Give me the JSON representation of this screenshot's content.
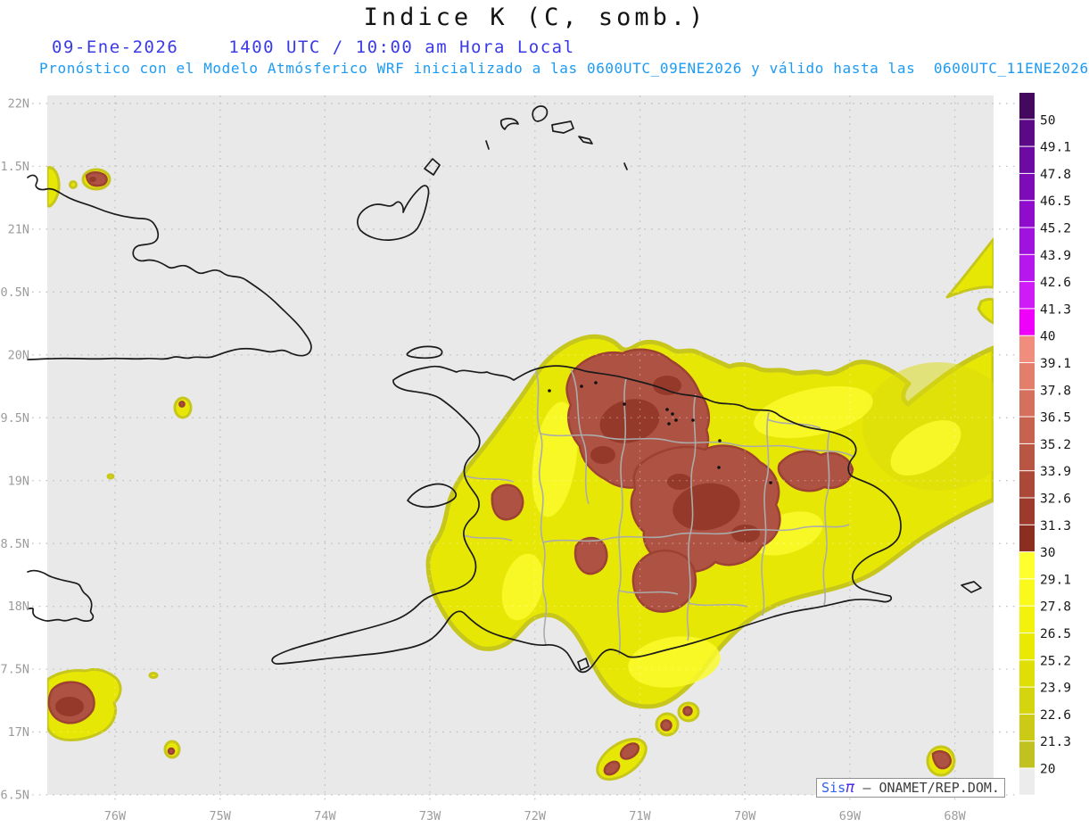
{
  "title": "Indice K (C, somb.)",
  "datetime_line": {
    "date": "09-Ene-2026",
    "time": "1400 UTC / 10:00 am Hora Local"
  },
  "subtitle": "Pronóstico con el Modelo Atmósferico WRF inicializado a las 0600UTC_09ENE2026 y válido hasta las  0600UTC_11ENE2026",
  "map": {
    "lat_labels": [
      "22N",
      "1.5N",
      "21N",
      "0.5N",
      "20N",
      "9.5N",
      "19N",
      "8.5N",
      "18N",
      "7.5N",
      "17N",
      "6.5N"
    ],
    "lon_labels": [
      "76W",
      "75W",
      "74W",
      "73W",
      "72W",
      "71W",
      "70W",
      "69W",
      "68W"
    ]
  },
  "colorbar": {
    "labels": [
      "50",
      "49.1",
      "47.8",
      "46.5",
      "45.2",
      "43.9",
      "42.6",
      "41.3",
      "40",
      "39.1",
      "37.8",
      "36.5",
      "35.2",
      "33.9",
      "32.6",
      "31.3",
      "30",
      "29.1",
      "27.8",
      "26.5",
      "25.2",
      "23.9",
      "22.6",
      "21.3",
      "20"
    ],
    "colors": [
      "#45085f",
      "#5c0987",
      "#6d0aa1",
      "#7e0bb8",
      "#8f0ccd",
      "#a112de",
      "#b517ec",
      "#cf1bf6",
      "#ee00fb",
      "#f18d7c",
      "#e37e6b",
      "#d4705c",
      "#c7624f",
      "#b95543",
      "#ab4837",
      "#9c3b2b",
      "#8b2e1f",
      "#ffff2e",
      "#f9f91c",
      "#f2f20c",
      "#e9e903",
      "#dfdf07",
      "#d5d50f",
      "#cbcb17",
      "#c1c11f",
      "#ececec"
    ]
  },
  "branding": {
    "sis": "Sis",
    "pi": "π",
    "rest": " – ONAMET/REP.DOM."
  },
  "palette": {
    "background_gray": "#e9e9e9",
    "yellow_field": "#e7e706",
    "yellow_bright": "#fbfb2f",
    "yellow_edge": "#c6c61d",
    "red_field": "#ae5244",
    "red_dark": "#8f3424",
    "coastline": "#1b1b1b",
    "province_border": "#ababab",
    "grid": "#9f9f9f",
    "axis_label": "#9c9c9c",
    "date_blue": "#3a3ae6",
    "subtitle_blue": "#1c9bf5"
  }
}
